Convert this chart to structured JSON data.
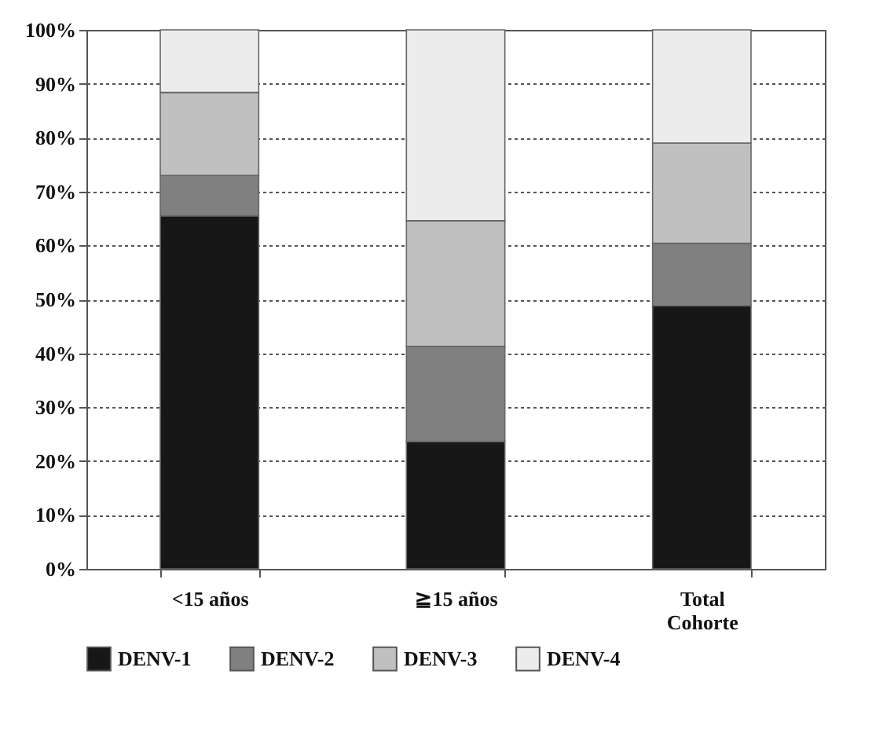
{
  "chart_data": {
    "type": "bar",
    "stacked": true,
    "categories": [
      "<15 años",
      "≧15 años",
      "Total Cohorte"
    ],
    "series": [
      {
        "name": "DENV-1",
        "color": "#171717",
        "values": [
          65.5,
          23.6,
          48.8
        ]
      },
      {
        "name": "DENV-2",
        "color": "#808080",
        "values": [
          7.5,
          17.7,
          11.6
        ]
      },
      {
        "name": "DENV-3",
        "color": "#c0c0c0",
        "values": [
          15.4,
          23.3,
          18.6
        ]
      },
      {
        "name": "DENV-4",
        "color": "#ececec",
        "values": [
          11.6,
          35.4,
          21.0
        ]
      }
    ],
    "ylim": [
      0,
      100
    ],
    "yticks": [
      {
        "value": 0,
        "label": "0%"
      },
      {
        "value": 10,
        "label": "10%"
      },
      {
        "value": 20,
        "label": "20%"
      },
      {
        "value": 30,
        "label": "30%"
      },
      {
        "value": 40,
        "label": "40%"
      },
      {
        "value": 50,
        "label": "50%"
      },
      {
        "value": 60,
        "label": "60%"
      },
      {
        "value": 70,
        "label": "70%"
      },
      {
        "value": 80,
        "label": "80%"
      },
      {
        "value": 90,
        "label": "90%"
      },
      {
        "value": 100,
        "label": "100%"
      }
    ],
    "grid": "y",
    "legend": "bottom"
  }
}
